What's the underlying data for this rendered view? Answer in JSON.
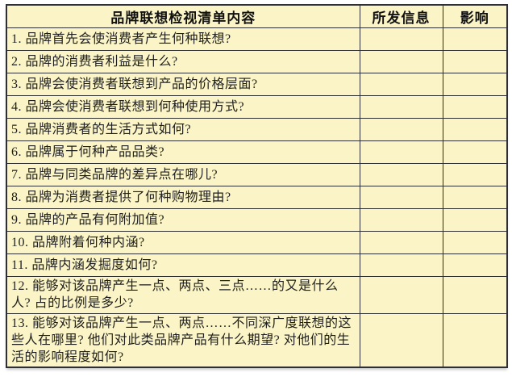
{
  "table": {
    "header": {
      "content": "品牌联想检视清单内容",
      "info": "所发信息",
      "impact": "影响"
    },
    "rows": [
      "1. 品牌首先会使消费者产生何种联想?",
      "2. 品牌的消费者利益是什么?",
      "3. 品牌会使消费者联想到产品的价格层面?",
      "4. 品牌会使消费者联想到何种使用方式?",
      "5. 品牌消费者的生活方式如何?",
      "6. 品牌属于何种产品品类?",
      "7. 品牌与同类品牌的差异点在哪儿?",
      "8. 品牌为消费者提供了何种购物理由?",
      "9. 品牌的产品有何附加值?",
      "10. 品牌附着何种内涵?",
      "11. 品牌内涵发掘度如何?",
      "12. 能够对该品牌产生一点、两点、三点……的又是什么人? 占的比例是多少?",
      "13. 能够对该品牌产生一点、两点……不同深广度联想的这些人在哪里? 他们对此类品牌产品有什么期望? 对他们的生活的影响程度如何?"
    ],
    "info_cell_value": "",
    "impact_cell_value": ""
  },
  "colors": {
    "cell_background": "#faf4c6",
    "border_color": "#2f2f2f",
    "text_color": "#1f1f1f",
    "page_background": "#ffffff"
  }
}
